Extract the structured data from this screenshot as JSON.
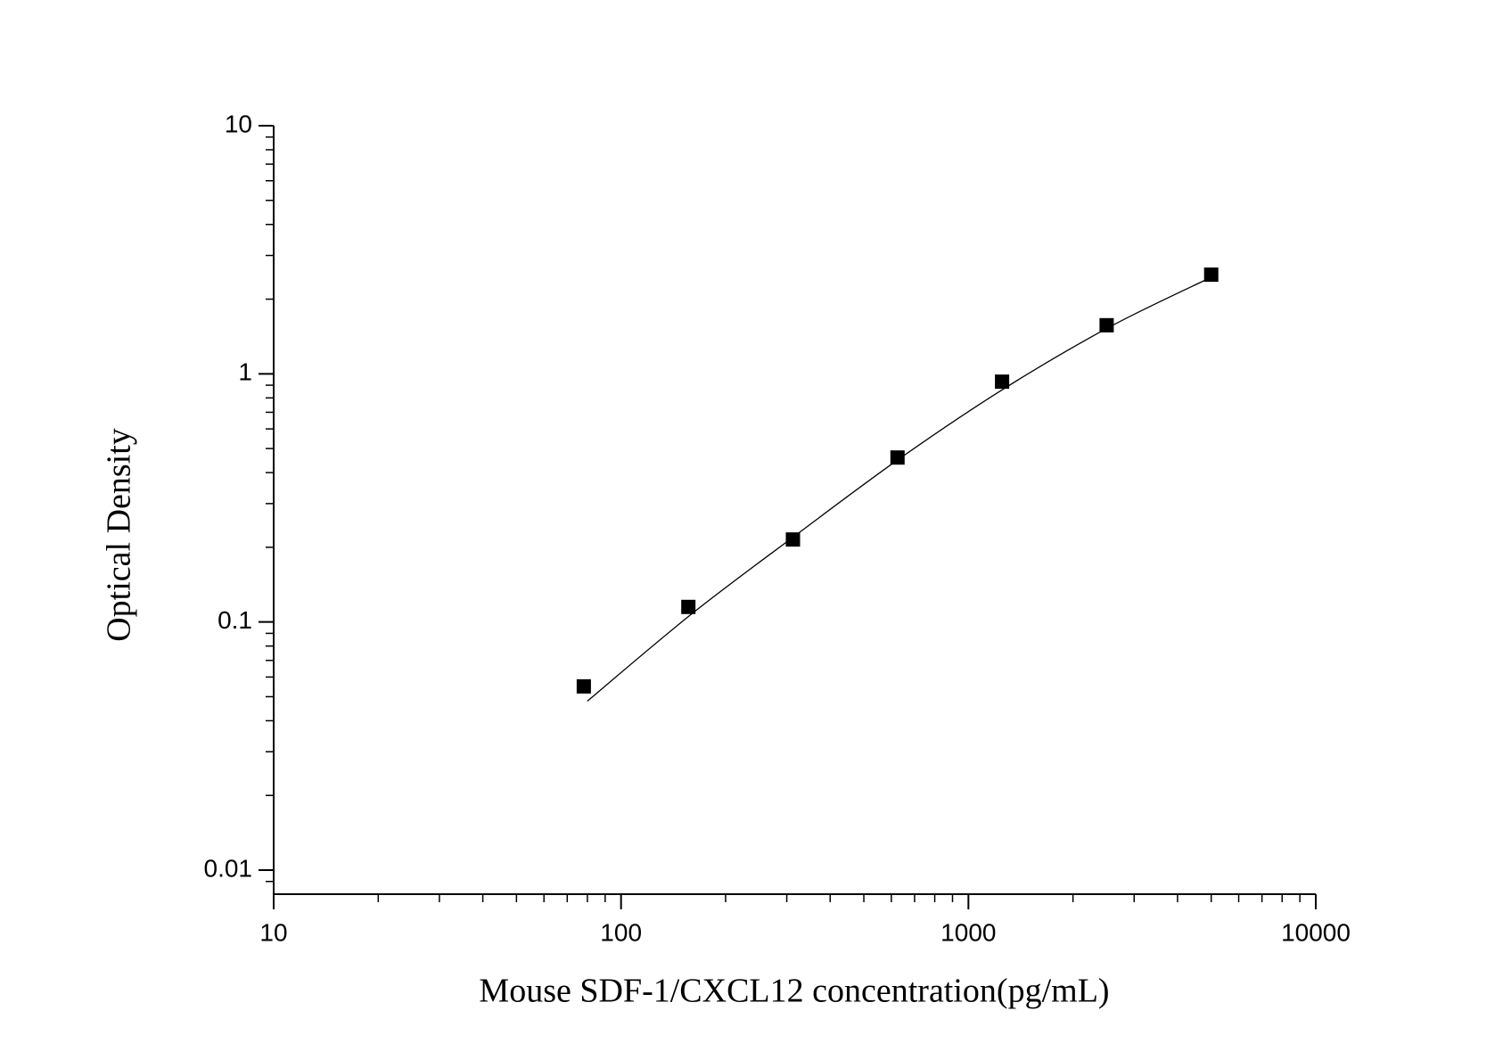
{
  "chart_data": {
    "type": "scatter",
    "x_label": "Mouse SDF-1/CXCL12 concentration(pg/mL)",
    "y_label": "Optical Density",
    "xscale": "log",
    "yscale": "log",
    "xlim": [
      10,
      10000
    ],
    "ylim": [
      0.008,
      10
    ],
    "xticks": [
      10,
      100,
      1000,
      10000
    ],
    "yticks": [
      0.01,
      0.1,
      1,
      10
    ],
    "series": [
      {
        "kind": "points",
        "color": "#000000",
        "x": [
          78.125,
          156.25,
          312.5,
          625,
          1250,
          2500,
          5000
        ],
        "values": [
          0.055,
          0.115,
          0.215,
          0.46,
          0.93,
          1.57,
          2.51
        ]
      },
      {
        "kind": "fit",
        "color": "#000000",
        "x": [
          80,
          160,
          320,
          640,
          1280,
          2560,
          5000
        ],
        "values": [
          0.048,
          0.108,
          0.225,
          0.46,
          0.88,
          1.55,
          2.45
        ]
      }
    ]
  }
}
